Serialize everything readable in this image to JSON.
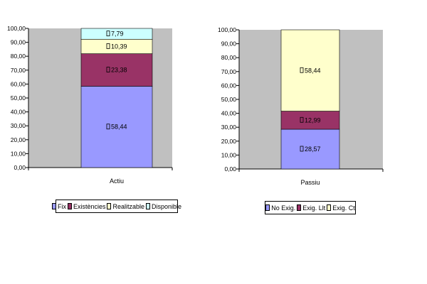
{
  "chart_data": [
    {
      "type": "bar",
      "stacked": true,
      "categories": [
        "Actiu"
      ],
      "ylim": [
        0,
        100
      ],
      "ytick_labels": [
        "0,00",
        "10,00",
        "20,00",
        "30,00",
        "40,00",
        "50,00",
        "60,00",
        "70,00",
        "80,00",
        "90,00",
        "100,00"
      ],
      "plot_background": "#c0c0c0",
      "legend_position": "bottom",
      "series": [
        {
          "name": "Fix",
          "values": [
            58.44
          ],
          "label": "58,44",
          "color": "#9999ff"
        },
        {
          "name": "Existències",
          "values": [
            23.38
          ],
          "label": "23,38",
          "color": "#993366"
        },
        {
          "name": "Realitzable",
          "values": [
            10.39
          ],
          "label": "10,39",
          "color": "#ffffcc"
        },
        {
          "name": "Disponible",
          "values": [
            7.79
          ],
          "label": "7,79",
          "color": "#ccffff"
        }
      ]
    },
    {
      "type": "bar",
      "stacked": true,
      "categories": [
        "Passiu"
      ],
      "ylim": [
        0,
        100
      ],
      "ytick_labels": [
        "0,00",
        "10,00",
        "20,00",
        "30,00",
        "40,00",
        "50,00",
        "60,00",
        "70,00",
        "80,00",
        "90,00",
        "100,00"
      ],
      "plot_background": "#c0c0c0",
      "legend_position": "bottom",
      "series": [
        {
          "name": "No Exig.",
          "values": [
            28.57
          ],
          "label": "28,57",
          "color": "#9999ff"
        },
        {
          "name": "Exig. Llt",
          "values": [
            12.99
          ],
          "label": "12,99",
          "color": "#993366"
        },
        {
          "name": "Exig. Ct",
          "values": [
            58.44
          ],
          "label": "58,44",
          "color": "#ffffcc"
        }
      ]
    }
  ]
}
